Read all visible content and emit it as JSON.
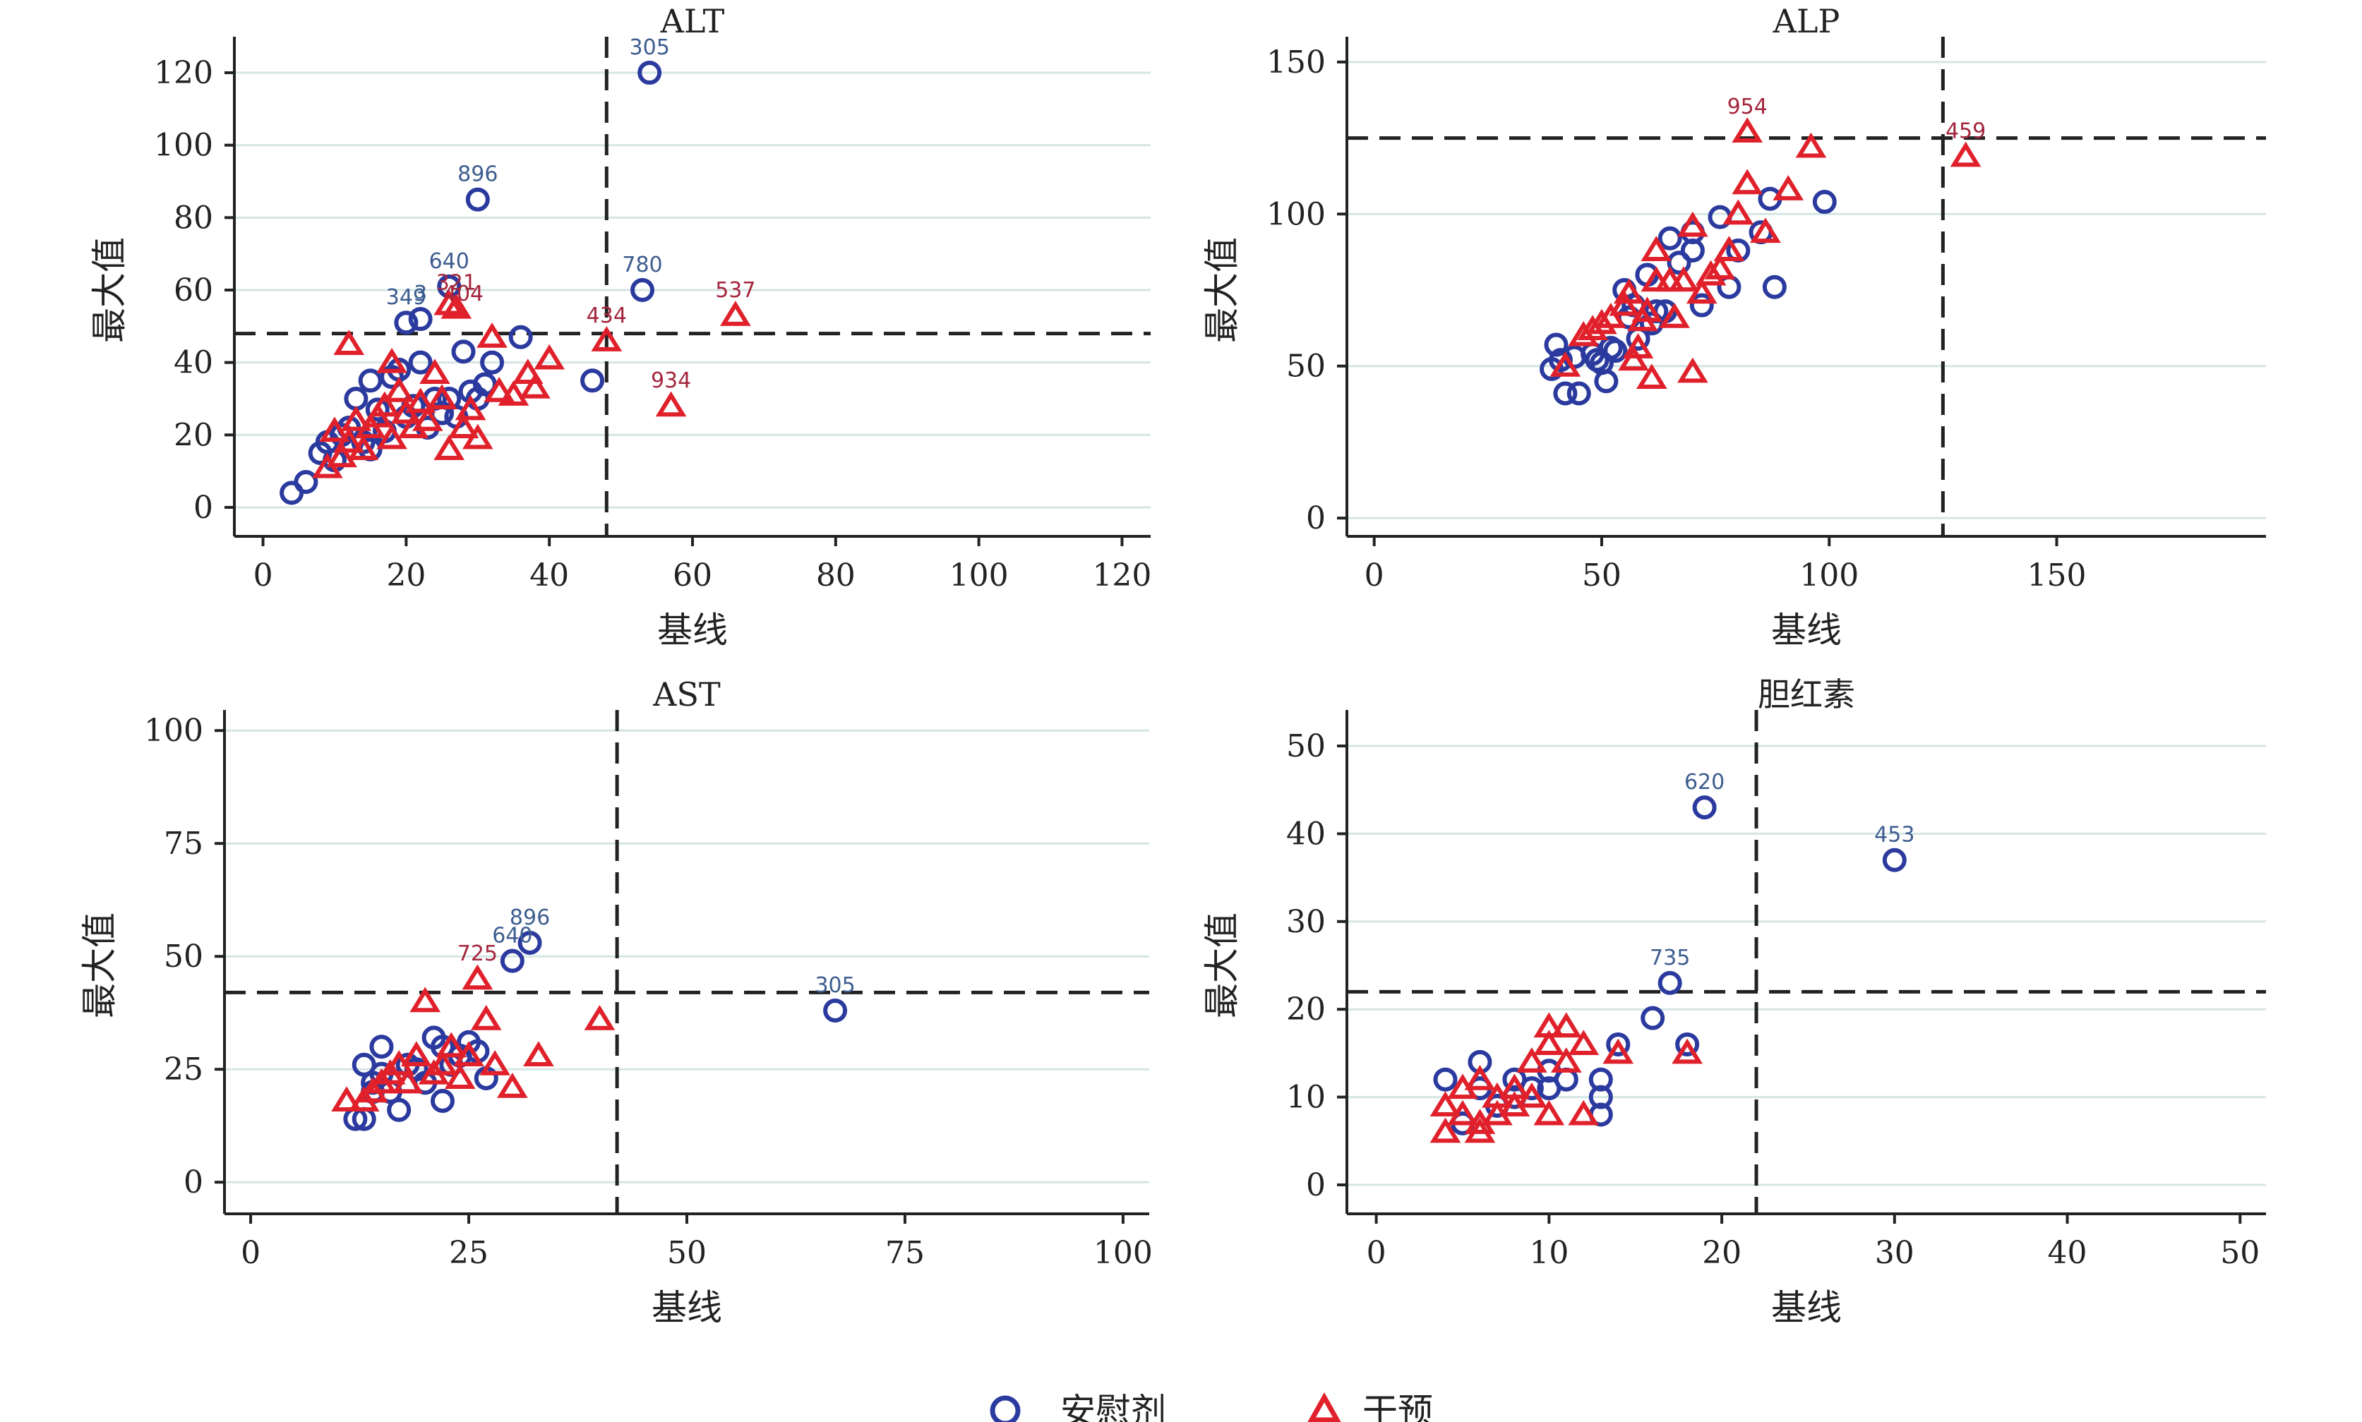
{
  "colors": {
    "placebo": "#2b3a9e",
    "intervention": "#e0202a",
    "grid": "#d4e6e3",
    "axis": "#222222",
    "placebo_label": "#3d5d8f",
    "intervention_label": "#a4263d"
  },
  "legend": {
    "items": [
      {
        "key": "placebo",
        "label": "安慰剂",
        "marker": "circle"
      },
      {
        "key": "intervention",
        "label": "干预",
        "marker": "triangle"
      }
    ]
  },
  "chart_data": [
    {
      "id": "alt",
      "type": "scatter",
      "title": "ALT",
      "xlabel": "基线",
      "ylabel": "最大值",
      "xlim": [
        -4,
        124
      ],
      "ylim": [
        -8,
        128
      ],
      "xticks": [
        0,
        20,
        40,
        60,
        80,
        100,
        120
      ],
      "yticks": [
        0,
        20,
        40,
        60,
        80,
        100,
        120
      ],
      "grid": true,
      "ref_x": 48,
      "ref_y": 48,
      "series": [
        {
          "key": "placebo",
          "points": [
            [
              4,
              4
            ],
            [
              6,
              7
            ],
            [
              8,
              15
            ],
            [
              9,
              18
            ],
            [
              10,
              13
            ],
            [
              11,
              20
            ],
            [
              12,
              22
            ],
            [
              13,
              30
            ],
            [
              14,
              18
            ],
            [
              15,
              16
            ],
            [
              15,
              35
            ],
            [
              16,
              27
            ],
            [
              17,
              21
            ],
            [
              18,
              36
            ],
            [
              19,
              38
            ],
            [
              20,
              51
            ],
            [
              20,
              25
            ],
            [
              21,
              28
            ],
            [
              22,
              40
            ],
            [
              22,
              52
            ],
            [
              23,
              22
            ],
            [
              24,
              30
            ],
            [
              25,
              26
            ],
            [
              26,
              61
            ],
            [
              26,
              30
            ],
            [
              27,
              25
            ],
            [
              28,
              43
            ],
            [
              29,
              32
            ],
            [
              30,
              30
            ],
            [
              30,
              85
            ],
            [
              31,
              34
            ],
            [
              32,
              40
            ],
            [
              36,
              47
            ],
            [
              46,
              35
            ],
            [
              53,
              60
            ],
            [
              54,
              120
            ]
          ]
        },
        {
          "key": "intervention",
          "points": [
            [
              9,
              11
            ],
            [
              10,
              21
            ],
            [
              11,
              14
            ],
            [
              12,
              18
            ],
            [
              12,
              45
            ],
            [
              13,
              24
            ],
            [
              14,
              16
            ],
            [
              15,
              22
            ],
            [
              16,
              25
            ],
            [
              17,
              28
            ],
            [
              18,
              40
            ],
            [
              18,
              19
            ],
            [
              19,
              32
            ],
            [
              20,
              26
            ],
            [
              21,
              22
            ],
            [
              22,
              29
            ],
            [
              23,
              24
            ],
            [
              24,
              37
            ],
            [
              25,
              30
            ],
            [
              26,
              16
            ],
            [
              26,
              56
            ],
            [
              27,
              55
            ],
            [
              28,
              22
            ],
            [
              29,
              27
            ],
            [
              30,
              19
            ],
            [
              32,
              47
            ],
            [
              33,
              32
            ],
            [
              35,
              31
            ],
            [
              37,
              37
            ],
            [
              38,
              33
            ],
            [
              40,
              41
            ],
            [
              48,
              46
            ],
            [
              57,
              28
            ],
            [
              66,
              53
            ]
          ]
        }
      ],
      "labels": [
        {
          "x": 54,
          "y": 120,
          "text": "305",
          "series": "placebo"
        },
        {
          "x": 30,
          "y": 85,
          "text": "896",
          "series": "placebo"
        },
        {
          "x": 26,
          "y": 61,
          "text": "640",
          "series": "placebo"
        },
        {
          "x": 20,
          "y": 51,
          "text": "349",
          "series": "placebo"
        },
        {
          "x": 22,
          "y": 52,
          "text": "3",
          "series": "placebo"
        },
        {
          "x": 53,
          "y": 60,
          "text": "780",
          "series": "placebo"
        },
        {
          "x": 27,
          "y": 55,
          "text": "321",
          "series": "intervention"
        },
        {
          "x": 28,
          "y": 52,
          "text": "404",
          "series": "intervention"
        },
        {
          "x": 48,
          "y": 46,
          "text": "434",
          "series": "intervention"
        },
        {
          "x": 57,
          "y": 28,
          "text": "934",
          "series": "intervention"
        },
        {
          "x": 66,
          "y": 53,
          "text": "537",
          "series": "intervention"
        }
      ]
    },
    {
      "id": "alp",
      "type": "scatter",
      "title": "ALP",
      "xlabel": "基线",
      "ylabel": "最大值",
      "xlim": [
        -6,
        196
      ],
      "ylim": [
        -6,
        156
      ],
      "xticks": [
        0,
        50,
        100,
        150
      ],
      "yticks": [
        0,
        50,
        100,
        150
      ],
      "grid": true,
      "ref_x": 125,
      "ref_y": 125,
      "series": [
        {
          "key": "placebo",
          "points": [
            [
              39,
              49
            ],
            [
              40,
              57
            ],
            [
              41,
              52
            ],
            [
              42,
              41
            ],
            [
              44,
              53
            ],
            [
              45,
              41
            ],
            [
              48,
              54
            ],
            [
              49,
              52
            ],
            [
              50,
              51
            ],
            [
              51,
              45
            ],
            [
              52,
              56
            ],
            [
              53,
              55
            ],
            [
              55,
              75
            ],
            [
              56,
              66
            ],
            [
              57,
              70
            ],
            [
              58,
              59
            ],
            [
              60,
              80
            ],
            [
              61,
              64
            ],
            [
              62,
              68
            ],
            [
              64,
              68
            ],
            [
              65,
              92
            ],
            [
              67,
              84
            ],
            [
              70,
              88
            ],
            [
              70,
              94
            ],
            [
              72,
              70
            ],
            [
              76,
              99
            ],
            [
              78,
              76
            ],
            [
              80,
              88
            ],
            [
              85,
              94
            ],
            [
              87,
              105
            ],
            [
              88,
              76
            ],
            [
              99,
              104
            ]
          ]
        },
        {
          "key": "intervention",
          "points": [
            [
              42,
              50
            ],
            [
              46,
              60
            ],
            [
              48,
              62
            ],
            [
              50,
              64
            ],
            [
              52,
              66
            ],
            [
              55,
              70
            ],
            [
              56,
              74
            ],
            [
              57,
              52
            ],
            [
              58,
              56
            ],
            [
              59,
              65
            ],
            [
              60,
              68
            ],
            [
              61,
              46
            ],
            [
              62,
              78
            ],
            [
              62,
              88
            ],
            [
              65,
              78
            ],
            [
              66,
              66
            ],
            [
              68,
              78
            ],
            [
              70,
              96
            ],
            [
              70,
              48
            ],
            [
              72,
              74
            ],
            [
              74,
              80
            ],
            [
              76,
              82
            ],
            [
              78,
              88
            ],
            [
              80,
              100
            ],
            [
              82,
              127
            ],
            [
              82,
              110
            ],
            [
              86,
              94
            ],
            [
              91,
              108
            ],
            [
              96,
              122
            ],
            [
              130,
              119
            ]
          ]
        }
      ],
      "labels": [
        {
          "x": 82,
          "y": 127,
          "text": "954",
          "series": "intervention"
        },
        {
          "x": 130,
          "y": 119,
          "text": "459",
          "series": "intervention"
        }
      ]
    },
    {
      "id": "ast",
      "type": "scatter",
      "title": "AST",
      "xlabel": "基线",
      "ylabel": "最大值",
      "xlim": [
        -3,
        103
      ],
      "ylim": [
        -7,
        103
      ],
      "xticks": [
        0,
        25,
        50,
        75,
        100
      ],
      "yticks": [
        0,
        25,
        50,
        75,
        100
      ],
      "grid": true,
      "ref_x": 42,
      "ref_y": 42,
      "series": [
        {
          "key": "placebo",
          "points": [
            [
              12,
              14
            ],
            [
              13,
              14
            ],
            [
              13,
              26
            ],
            [
              14,
              20
            ],
            [
              14,
              22
            ],
            [
              15,
              30
            ],
            [
              15,
              24
            ],
            [
              16,
              20
            ],
            [
              17,
              16
            ],
            [
              18,
              26
            ],
            [
              19,
              25
            ],
            [
              20,
              22
            ],
            [
              21,
              32
            ],
            [
              22,
              18
            ],
            [
              22,
              30
            ],
            [
              23,
              26
            ],
            [
              24,
              28
            ],
            [
              25,
              31
            ],
            [
              26,
              29
            ],
            [
              27,
              23
            ],
            [
              30,
              49
            ],
            [
              32,
              53
            ],
            [
              67,
              38
            ]
          ]
        },
        {
          "key": "intervention",
          "points": [
            [
              11,
              18
            ],
            [
              13,
              18
            ],
            [
              14,
              20
            ],
            [
              15,
              22
            ],
            [
              16,
              24
            ],
            [
              17,
              26
            ],
            [
              18,
              22
            ],
            [
              19,
              28
            ],
            [
              20,
              40
            ],
            [
              21,
              24
            ],
            [
              22,
              26
            ],
            [
              23,
              30
            ],
            [
              24,
              23
            ],
            [
              25,
              28
            ],
            [
              26,
              45
            ],
            [
              27,
              36
            ],
            [
              28,
              26
            ],
            [
              30,
              21
            ],
            [
              33,
              28
            ],
            [
              40,
              36
            ]
          ]
        }
      ],
      "labels": [
        {
          "x": 30,
          "y": 49,
          "text": "640",
          "series": "placebo"
        },
        {
          "x": 32,
          "y": 53,
          "text": "896",
          "series": "placebo"
        },
        {
          "x": 67,
          "y": 38,
          "text": "305",
          "series": "placebo"
        },
        {
          "x": 26,
          "y": 45,
          "text": "725",
          "series": "intervention"
        }
      ]
    },
    {
      "id": "bilirubin",
      "type": "scatter",
      "title": "胆红素",
      "xlabel": "基线",
      "ylabel": "最大值",
      "xlim": [
        -1.7,
        51.5
      ],
      "ylim": [
        -3.3,
        53.3
      ],
      "xticks": [
        0,
        10,
        20,
        30,
        40,
        50
      ],
      "yticks": [
        0,
        10,
        20,
        30,
        40,
        50
      ],
      "grid": true,
      "ref_x": 22,
      "ref_y": 22,
      "series": [
        {
          "key": "placebo",
          "points": [
            [
              4,
              12
            ],
            [
              5,
              7
            ],
            [
              6,
              14
            ],
            [
              6,
              11
            ],
            [
              7,
              9
            ],
            [
              8,
              12
            ],
            [
              8,
              10
            ],
            [
              9,
              11
            ],
            [
              10,
              13
            ],
            [
              10,
              11
            ],
            [
              11,
              12
            ],
            [
              13,
              12
            ],
            [
              13,
              10
            ],
            [
              13,
              8
            ],
            [
              14,
              16
            ],
            [
              16,
              19
            ],
            [
              17,
              23
            ],
            [
              18,
              16
            ],
            [
              19,
              43
            ],
            [
              30,
              37
            ]
          ]
        },
        {
          "key": "intervention",
          "points": [
            [
              4,
              6
            ],
            [
              4,
              9
            ],
            [
              5,
              11
            ],
            [
              5,
              8
            ],
            [
              6,
              6
            ],
            [
              6,
              7
            ],
            [
              6,
              12
            ],
            [
              7,
              10
            ],
            [
              7,
              8
            ],
            [
              8,
              11
            ],
            [
              8,
              9
            ],
            [
              9,
              10
            ],
            [
              9,
              14
            ],
            [
              10,
              18
            ],
            [
              10,
              16
            ],
            [
              10,
              8
            ],
            [
              11,
              18
            ],
            [
              11,
              14
            ],
            [
              12,
              16
            ],
            [
              12,
              8
            ],
            [
              14,
              15
            ],
            [
              18,
              15
            ]
          ]
        }
      ],
      "labels": [
        {
          "x": 19,
          "y": 43,
          "text": "620",
          "series": "placebo"
        },
        {
          "x": 30,
          "y": 37,
          "text": "453",
          "series": "placebo"
        },
        {
          "x": 17,
          "y": 23,
          "text": "735",
          "series": "placebo"
        }
      ]
    }
  ]
}
